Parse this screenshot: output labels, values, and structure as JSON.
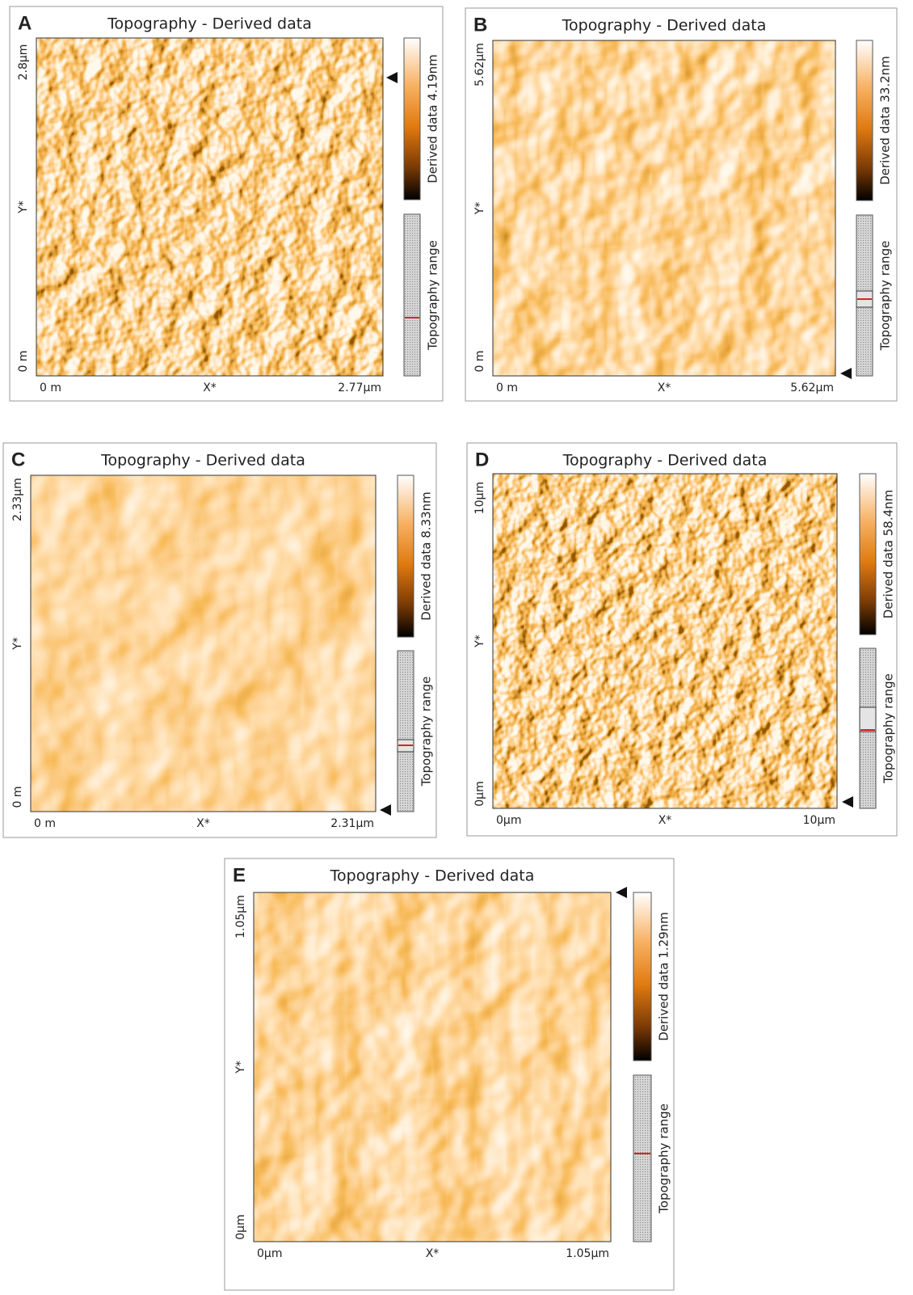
{
  "panels": [
    {
      "label": "A",
      "title": "Topography - Derived data",
      "y_max": "2.8µm",
      "y_label": "Y*",
      "y_min": "0 m",
      "x_min": "0 m",
      "x_label": "X*",
      "x_max": "2.77µm",
      "colorbar": "Derived data 4.19nm",
      "range_label": "Topography range"
    },
    {
      "label": "B",
      "title": "Topography - Derived data",
      "y_max": "5.62µm",
      "y_label": "Y*",
      "y_min": "0 m",
      "x_min": "0 m",
      "x_label": "X*",
      "x_max": "5.62µm",
      "colorbar": "Derived data 33.2nm",
      "range_label": "Topography range"
    },
    {
      "label": "C",
      "title": "Topography - Derived data",
      "y_max": "2.33µm",
      "y_label": "Y*",
      "y_min": "0 m",
      "x_min": "0 m",
      "x_label": "X*",
      "x_max": "2.31µm",
      "colorbar": "Derived data 8.33nm",
      "range_label": "Topography range"
    },
    {
      "label": "D",
      "title": "Topography - Derived data",
      "y_max": "10µm",
      "y_label": "Y*",
      "y_min": "0µm",
      "x_min": "0µm",
      "x_label": "X*",
      "x_max": "10µm",
      "colorbar": "Derived data 58.4nm",
      "range_label": "Topography range"
    },
    {
      "label": "E",
      "title": "Topography - Derived data",
      "y_max": "1.05µm",
      "y_label": "Y*",
      "y_min": "0µm",
      "x_min": "0µm",
      "x_label": "X*",
      "x_max": "1.05µm",
      "colorbar": "Derived data 1.29nm",
      "range_label": "Topography range"
    }
  ]
}
